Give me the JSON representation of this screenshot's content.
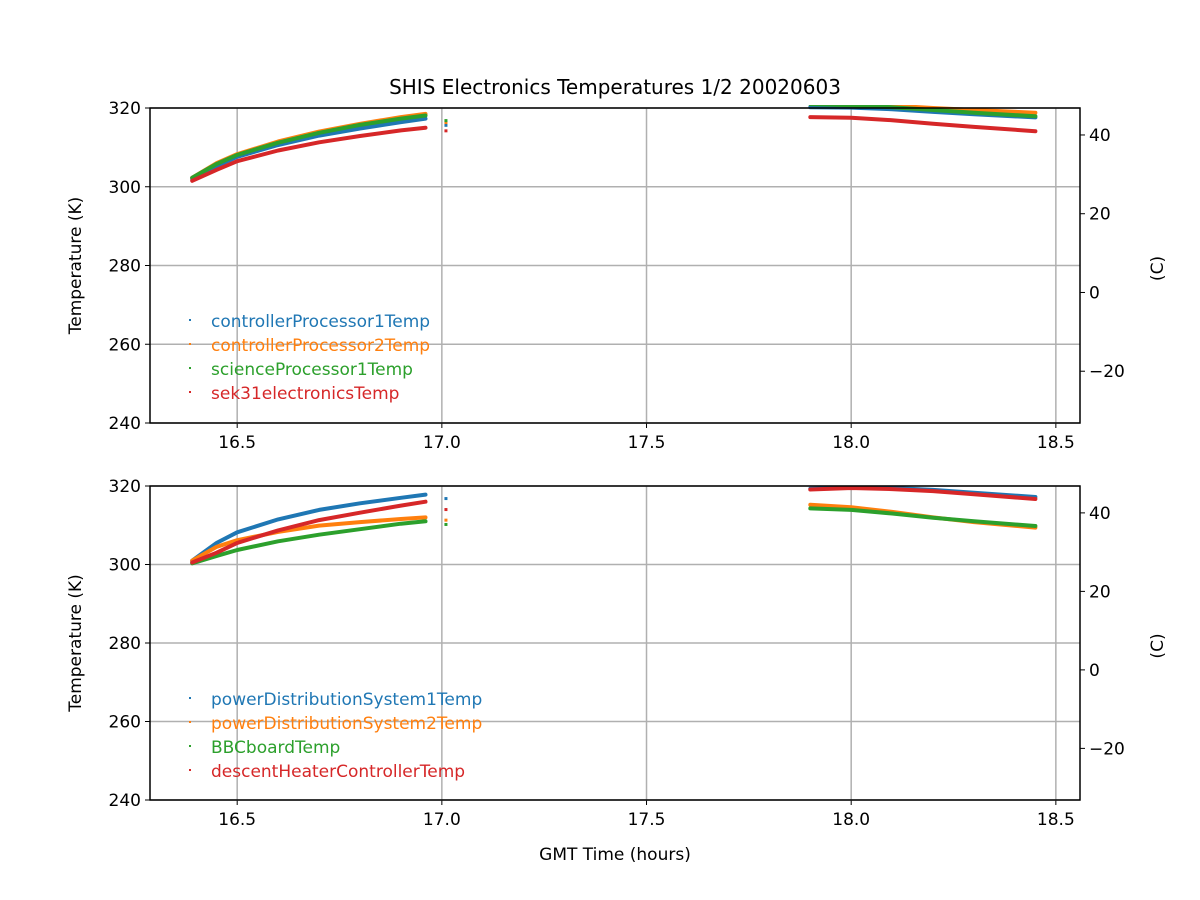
{
  "chart_data": {
    "type": "scatter",
    "title": "SHIS Electronics Temperatures 1/2 20020603",
    "xlabel": "GMT Time (hours)",
    "xlim": [
      16.287,
      18.559
    ],
    "xticks": [
      16.5,
      17.0,
      17.5,
      18.0,
      18.5
    ],
    "xtick_labels": [
      "16.5",
      "17.0",
      "17.5",
      "18.0",
      "18.5"
    ],
    "grid": true,
    "legend_placement": "lower-left",
    "panels": [
      {
        "ylabel": "Temperature (K)",
        "ylim": [
          240,
          320
        ],
        "yticks": [
          240,
          260,
          280,
          300,
          320
        ],
        "ytick_labels": [
          "240",
          "260",
          "280",
          "300",
          "320"
        ],
        "right_ylabel": "(C)",
        "right_offset": -273.15,
        "right_yticks": [
          -20,
          0,
          20,
          40
        ],
        "right_ytick_labels": [
          "−20",
          "0",
          "20",
          "40"
        ],
        "segments_x": [
          [
            16.39,
            16.45,
            16.5,
            16.6,
            16.7,
            16.8,
            16.9,
            16.96
          ],
          [
            17.01
          ],
          [
            17.9,
            18.0,
            18.1,
            18.2,
            18.3,
            18.45
          ]
        ],
        "series": [
          {
            "name": "controllerProcessor1Temp",
            "color": "#1f77b4",
            "values": [
              [
                302,
                305.3,
                307.6,
                310.6,
                313,
                314.8,
                316.4,
                317.3
              ],
              [
                315.6
              ],
              [
                320.2,
                320.1,
                319.7,
                319,
                318.4,
                317.6
              ]
            ]
          },
          {
            "name": "controllerProcessor2Temp",
            "color": "#ff7f0e",
            "values": [
              [
                302.3,
                306,
                308.3,
                311.5,
                314,
                316,
                317.7,
                318.5
              ],
              [
                316.3
              ],
              [
                321.3,
                321,
                320.6,
                320,
                319.5,
                318.8
              ]
            ]
          },
          {
            "name": "scienceProcessor1Temp",
            "color": "#2ca02c",
            "values": [
              [
                302.3,
                305.8,
                308.1,
                311.2,
                313.7,
                315.7,
                317.3,
                318.1
              ],
              [
                316.8
              ],
              [
                321,
                320.7,
                320.2,
                319.5,
                318.8,
                317.9
              ]
            ]
          },
          {
            "name": "sek31electronicsTemp",
            "color": "#d62728",
            "values": [
              [
                301.5,
                304.3,
                306.5,
                309.2,
                311.3,
                312.9,
                314.3,
                315
              ],
              [
                314.2
              ],
              [
                317.7,
                317.5,
                316.9,
                316,
                315.2,
                314.1
              ]
            ]
          }
        ]
      },
      {
        "ylabel": "Temperature (K)",
        "ylim": [
          240,
          320
        ],
        "yticks": [
          240,
          260,
          280,
          300,
          320
        ],
        "ytick_labels": [
          "240",
          "260",
          "280",
          "300",
          "320"
        ],
        "right_ylabel": "(C)",
        "right_offset": -273.15,
        "right_yticks": [
          -20,
          0,
          20,
          40
        ],
        "right_ytick_labels": [
          "−20",
          "0",
          "20",
          "40"
        ],
        "segments_x": [
          [
            16.39,
            16.45,
            16.5,
            16.6,
            16.7,
            16.8,
            16.9,
            16.96
          ],
          [
            17.01
          ],
          [
            17.9,
            18.0,
            18.1,
            18.2,
            18.3,
            18.45
          ]
        ],
        "series": [
          {
            "name": "powerDistributionSystem1Temp",
            "color": "#1f77b4",
            "values": [
              [
                301,
                305.5,
                308.2,
                311.5,
                313.9,
                315.6,
                317,
                317.8
              ],
              [
                316.8
              ],
              [
                319.3,
                319.6,
                319.5,
                319,
                318.3,
                317.2
              ]
            ]
          },
          {
            "name": "powerDistributionSystem2Temp",
            "color": "#ff7f0e",
            "values": [
              [
                301,
                304.5,
                306.2,
                308.3,
                309.9,
                310.8,
                311.6,
                312
              ],
              [
                311.3
              ],
              [
                315.2,
                314.6,
                313.4,
                312,
                310.8,
                309.4
              ]
            ]
          },
          {
            "name": "BBCboardTemp",
            "color": "#2ca02c",
            "values": [
              [
                300.3,
                302.2,
                303.7,
                305.9,
                307.6,
                309,
                310.4,
                311
              ],
              [
                310.2
              ],
              [
                314.3,
                313.9,
                313,
                311.9,
                311,
                309.8
              ]
            ]
          },
          {
            "name": "descentHeaterControllerTemp",
            "color": "#d62728",
            "values": [
              [
                300.5,
                303,
                305.5,
                308.7,
                311.3,
                313.2,
                315,
                316
              ],
              [
                314
              ],
              [
                319.1,
                319.5,
                319.2,
                318.7,
                317.9,
                316.7
              ]
            ]
          }
        ]
      }
    ]
  }
}
